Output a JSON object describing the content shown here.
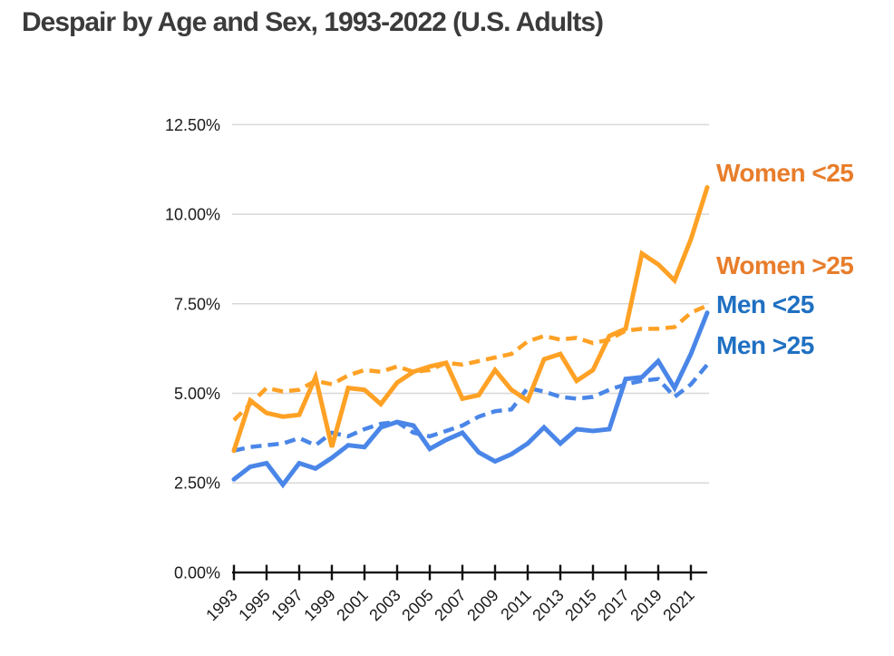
{
  "title": "Despair by Age and Sex, 1993-2022 (U.S. Adults)",
  "colors": {
    "orange_line": "#FFA125",
    "blue_line": "#4A86E8",
    "orange_text": "#E87D2B",
    "blue_text": "#1F70C2",
    "title_text": "#3B3B3B",
    "gridline": "#D8D8D8",
    "axis": "#111111",
    "tick_label": "#1A1A1A"
  },
  "chart_data": {
    "type": "line",
    "title": "Despair by Age and Sex, 1993-2022 (U.S. Adults)",
    "xlabel": "",
    "ylabel": "",
    "ylim": [
      0,
      12.5
    ],
    "grid": true,
    "legend_position": "right",
    "x": [
      1993,
      1994,
      1995,
      1996,
      1997,
      1998,
      1999,
      2000,
      2001,
      2002,
      2003,
      2004,
      2005,
      2006,
      2007,
      2008,
      2009,
      2010,
      2011,
      2012,
      2013,
      2014,
      2015,
      2016,
      2017,
      2018,
      2019,
      2020,
      2021,
      2022
    ],
    "x_tick_years": [
      1993,
      1995,
      1997,
      1999,
      2001,
      2003,
      2005,
      2007,
      2009,
      2011,
      2013,
      2015,
      2017,
      2019,
      2021
    ],
    "x_tick_labels": [
      "1993",
      "1995",
      "1997",
      "1999",
      "2001",
      "2003",
      "2005",
      "2007",
      "2009",
      "2011",
      "2013",
      "2015",
      "2017",
      "2019",
      "2021"
    ],
    "y_tick_values": [
      0,
      2.5,
      5,
      7.5,
      10,
      12.5
    ],
    "y_ticks": [
      "0.00%",
      "2.50%",
      "5.00%",
      "7.50%",
      "10.00%",
      "12.50%"
    ],
    "series": [
      {
        "id": "women-under-25",
        "name": "Women <25",
        "style": "solid",
        "color": "orange_line",
        "label_color": "orange_text",
        "values": [
          3.4,
          4.8,
          4.45,
          4.35,
          4.4,
          5.45,
          3.5,
          5.15,
          5.1,
          4.7,
          5.3,
          5.6,
          5.75,
          5.85,
          4.85,
          4.95,
          5.65,
          5.1,
          4.8,
          5.95,
          6.1,
          5.35,
          5.65,
          6.6,
          6.8,
          8.9,
          8.6,
          8.15,
          9.3,
          10.75
        ]
      },
      {
        "id": "women-over-25",
        "name": "Women >25",
        "style": "dashed",
        "color": "orange_line",
        "label_color": "orange_text",
        "values": [
          4.25,
          4.7,
          5.15,
          5.05,
          5.1,
          5.35,
          5.25,
          5.5,
          5.65,
          5.6,
          5.75,
          5.6,
          5.65,
          5.85,
          5.8,
          5.9,
          6.0,
          6.1,
          6.45,
          6.6,
          6.5,
          6.55,
          6.4,
          6.5,
          6.75,
          6.8,
          6.8,
          6.85,
          7.25,
          7.45
        ]
      },
      {
        "id": "men-under-25",
        "name": "Men <25",
        "style": "solid",
        "color": "blue_line",
        "label_color": "blue_text",
        "values": [
          2.6,
          2.95,
          3.05,
          2.45,
          3.05,
          2.9,
          3.2,
          3.55,
          3.5,
          4.05,
          4.2,
          4.1,
          3.45,
          3.7,
          3.9,
          3.35,
          3.1,
          3.3,
          3.6,
          4.05,
          3.6,
          4.0,
          3.95,
          4.0,
          5.4,
          5.45,
          5.9,
          5.15,
          6.1,
          7.25
        ]
      },
      {
        "id": "men-over-25",
        "name": "Men >25",
        "style": "dashed",
        "color": "blue_line",
        "label_color": "blue_text",
        "values": [
          3.4,
          3.5,
          3.55,
          3.6,
          3.75,
          3.55,
          3.9,
          3.8,
          4.0,
          4.15,
          4.2,
          3.9,
          3.8,
          3.95,
          4.1,
          4.35,
          4.5,
          4.55,
          5.15,
          5.05,
          4.9,
          4.85,
          4.9,
          5.1,
          5.25,
          5.35,
          5.4,
          4.9,
          5.25,
          5.8
        ]
      }
    ]
  }
}
